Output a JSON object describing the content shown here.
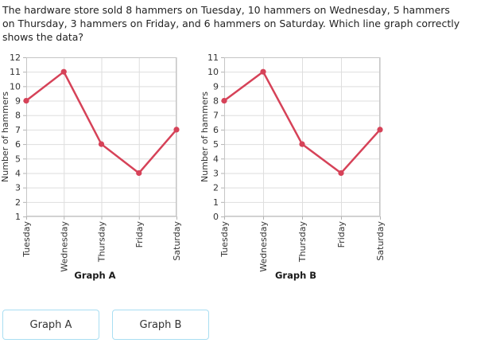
{
  "question": {
    "lines": [
      "The hardware store sold 8 hammers on Tuesday, 10 hammers on Wednesday, 5 hammers",
      "on Thursday, 3 hammers on Friday, and 6 hammers on Saturday. Which line graph correctly",
      "shows the data?"
    ]
  },
  "chart_data": [
    {
      "type": "line",
      "title": "Graph A",
      "ylabel": "Number of hammers",
      "xlabel": "",
      "categories": [
        "Tuesday",
        "Wednesday",
        "Thursday",
        "Friday",
        "Saturday"
      ],
      "values": [
        9,
        11,
        6,
        4,
        7
      ],
      "ylim": [
        1,
        12
      ],
      "ytick_step": 1,
      "grid": true,
      "legend": false
    },
    {
      "type": "line",
      "title": "Graph B",
      "ylabel": "Number of hammers",
      "xlabel": "",
      "categories": [
        "Tuesday",
        "Wednesday",
        "Thursday",
        "Friday",
        "Saturday"
      ],
      "values": [
        8,
        10,
        5,
        3,
        6
      ],
      "ylim": [
        0,
        11
      ],
      "ytick_step": 1,
      "grid": true,
      "legend": false
    }
  ],
  "buttons": [
    {
      "label": "Graph A"
    },
    {
      "label": "Graph B"
    }
  ],
  "colors": {
    "line": "#d64258",
    "marker": "#d64258",
    "grid": "#dedede",
    "plot_border": "#c6c6c6",
    "tick": "#b3b3b3",
    "chart_text": "#333333",
    "question_text": "#222222",
    "button_border": "#a9def2",
    "button_text": "#333333",
    "background": "#ffffff"
  }
}
